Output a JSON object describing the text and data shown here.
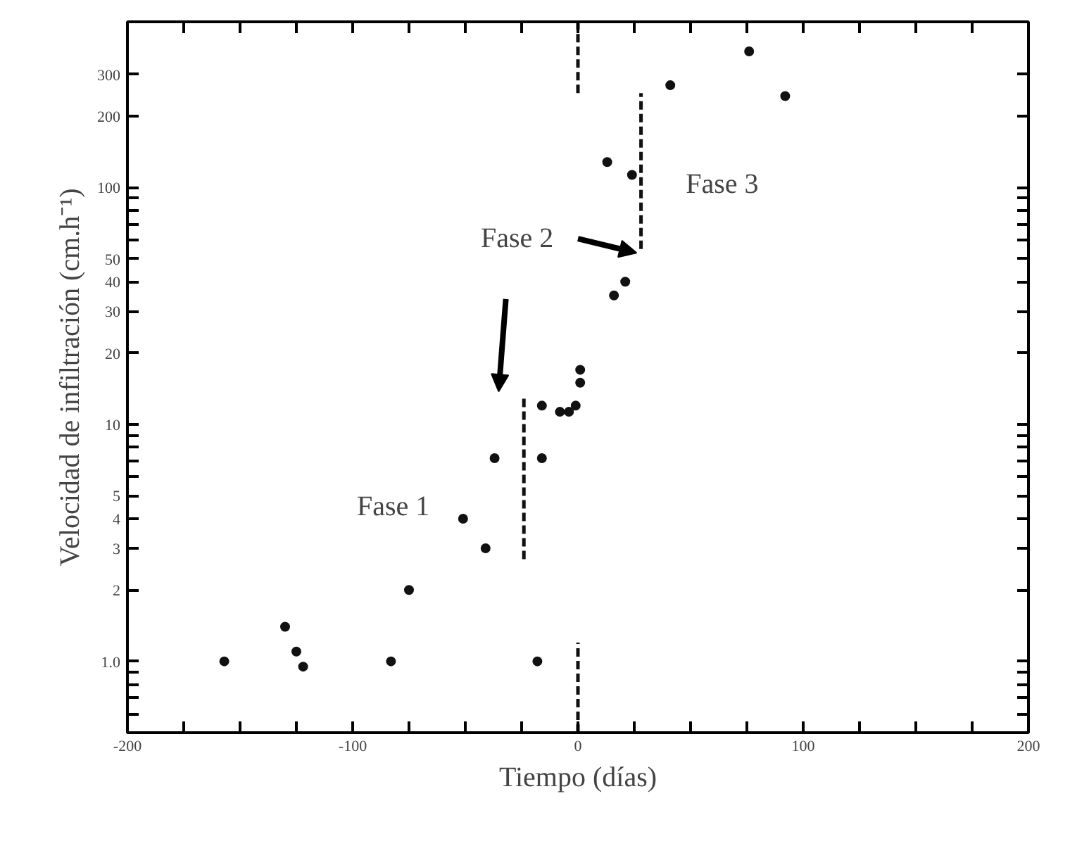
{
  "chart_data": {
    "type": "scatter",
    "xlabel": "Tiempo (días)",
    "ylabel": "Velocidad de infiltración (cm.h⁻¹)",
    "log": "y",
    "grid": false,
    "xlim": [
      -200,
      200
    ],
    "ylim": [
      0.5,
      500
    ],
    "xticks": [
      -200,
      {
        "value": -175,
        "label": null
      },
      {
        "value": -150,
        "label": null
      },
      {
        "value": -125,
        "label": null
      },
      -100,
      {
        "value": -75,
        "label": null
      },
      {
        "value": -50,
        "label": null
      },
      {
        "value": -25,
        "label": null
      },
      0,
      {
        "value": 25,
        "label": null
      },
      {
        "value": 50,
        "label": null
      },
      {
        "value": 75,
        "label": null
      },
      100,
      {
        "value": 125,
        "label": null
      },
      {
        "value": 150,
        "label": null
      },
      {
        "value": 175,
        "label": null
      },
      200
    ],
    "yticks": [
      {
        "value": 0.6,
        "label": null
      },
      {
        "value": 0.7,
        "label": null
      },
      {
        "value": 0.8,
        "label": null
      },
      {
        "value": 0.9,
        "label": null
      },
      {
        "value": 1,
        "label": "1.0"
      },
      2,
      3,
      4,
      5,
      {
        "value": 6,
        "label": null
      },
      {
        "value": 7,
        "label": null
      },
      {
        "value": 8,
        "label": null
      },
      {
        "value": 9,
        "label": null
      },
      10,
      20,
      30,
      40,
      50,
      {
        "value": 60,
        "label": null
      },
      {
        "value": 70,
        "label": null
      },
      {
        "value": 80,
        "label": null
      },
      {
        "value": 90,
        "label": null
      },
      100,
      200,
      300
    ],
    "series": [
      {
        "marker": "circle",
        "color": "#111111",
        "x": [
          -157,
          -130,
          -125,
          -122,
          -83,
          -75,
          -51,
          -41,
          -37,
          -16,
          -18,
          -16,
          -8,
          -4,
          -1,
          1,
          1,
          16,
          21,
          13,
          24,
          41,
          76,
          92
        ],
        "values": [
          1.0,
          1.4,
          1.1,
          0.95,
          1.0,
          2.0,
          4.0,
          3.0,
          7.2,
          7.2,
          1.0,
          12,
          11.3,
          11.3,
          12,
          15,
          17,
          35,
          40,
          128,
          113,
          270,
          375,
          243
        ]
      },
      {
        "type": "line",
        "line_style": "dashed",
        "color": "#111111",
        "x": [
          0,
          0
        ],
        "values": [
          0.5,
          1.2
        ]
      },
      {
        "type": "line",
        "line_style": "dashed",
        "color": "#111111",
        "x": [
          0,
          0
        ],
        "values": [
          250,
          500
        ]
      },
      {
        "type": "line",
        "line_style": "dashed",
        "color": "#111111",
        "x": [
          -24,
          -24
        ],
        "values": [
          2.7,
          13
        ]
      },
      {
        "type": "line",
        "line_style": "dashed",
        "color": "#111111",
        "x": [
          28,
          28
        ],
        "values": [
          55,
          250
        ]
      }
    ],
    "annotations": [
      "Fase 1",
      "Fase 2",
      "Fase 3"
    ]
  }
}
